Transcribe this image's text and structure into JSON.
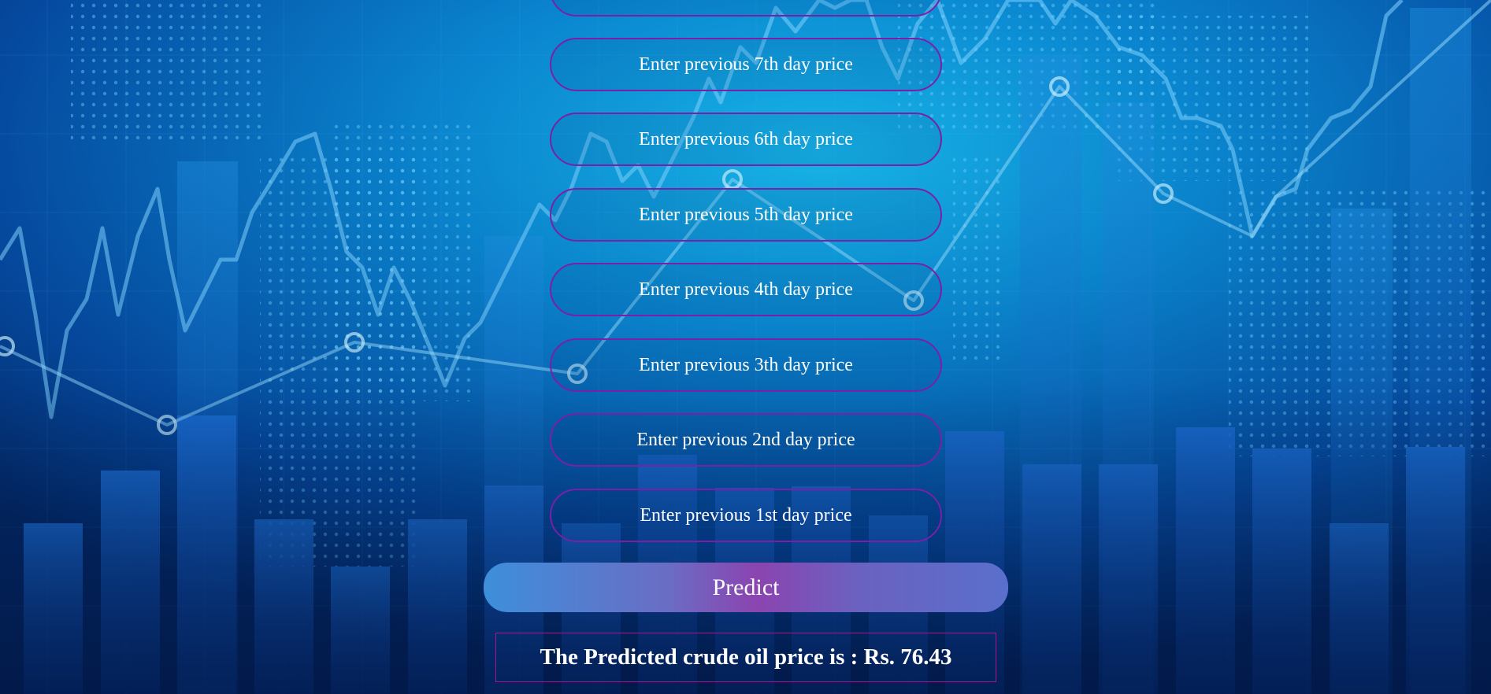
{
  "theme": {
    "field_border": "#7a1fa8",
    "result_border": "#b0138f",
    "button_gradient": [
      "#3d8fdb",
      "#8b44b0",
      "#5a6fcc"
    ],
    "background": "#042a66"
  },
  "background_image": "stock-market-chart-background",
  "form": {
    "fields": [
      {
        "name": "day8",
        "placeholder": ""
      },
      {
        "name": "day7",
        "placeholder": "Enter previous 7th day price"
      },
      {
        "name": "day6",
        "placeholder": "Enter previous 6th day price"
      },
      {
        "name": "day5",
        "placeholder": "Enter previous 5th day price"
      },
      {
        "name": "day4",
        "placeholder": "Enter previous 4th day price"
      },
      {
        "name": "day3",
        "placeholder": "Enter previous 3th day price"
      },
      {
        "name": "day2",
        "placeholder": "Enter previous 2nd day price"
      },
      {
        "name": "day1",
        "placeholder": "Enter previous 1st day price"
      }
    ],
    "submit_label": "Predict"
  },
  "result": {
    "text": "The Predicted crude oil price is : Rs. 76.43"
  }
}
